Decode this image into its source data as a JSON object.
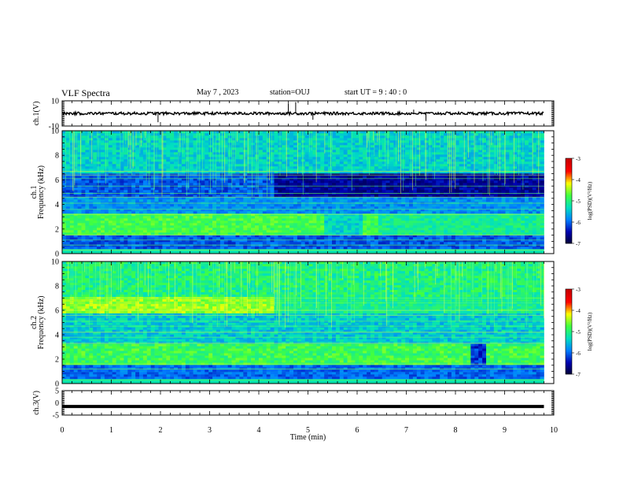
{
  "header": {
    "title": "VLF Spectra",
    "date": "May 7 , 2023",
    "station": "station=OUJ",
    "start": "start UT = 9 : 40 : 0"
  },
  "colors": {
    "background": "#ffffff",
    "axis": "#000000",
    "colormap": [
      "#000030",
      "#0000b0",
      "#0080ff",
      "#00e0c0",
      "#40ff40",
      "#ffff00",
      "#ff0000",
      "#c80000"
    ]
  },
  "chart_data": [
    {
      "type": "line",
      "panel": "ch1-waveform",
      "ylabel": "ch.1(V)",
      "ylim": [
        -10,
        10
      ],
      "yticks": [
        "10",
        "-10"
      ],
      "xlim": [
        0,
        10
      ],
      "baseline": 0,
      "grid": false
    },
    {
      "type": "heatmap",
      "panel": "ch1-spectrogram",
      "ylabel": "ch.1\nFrequency (kHz)",
      "ylabel_lines": [
        "ch.1",
        "Frequency (kHz)"
      ],
      "ylim": [
        0,
        10
      ],
      "yticks": [
        "10",
        "8",
        "6",
        "4",
        "2",
        "0"
      ],
      "xlim": [
        0,
        10
      ],
      "data_end_min": 9.8,
      "colorbar": {
        "label": "log(PSD)(V²/Hz)",
        "range": [
          -7,
          -3
        ],
        "ticks": [
          "-3",
          "-4",
          "-5",
          "-6",
          "-7"
        ]
      }
    },
    {
      "type": "heatmap",
      "panel": "ch2-spectrogram",
      "ylabel": "ch.2\nFrequency (kHz)",
      "ylabel_lines": [
        "ch.2",
        "Frequency (kHz)"
      ],
      "ylim": [
        0,
        10
      ],
      "yticks": [
        "10",
        "8",
        "6",
        "4",
        "2",
        "0"
      ],
      "xlim": [
        0,
        10
      ],
      "data_end_min": 9.8,
      "colorbar": {
        "label": "log(PSD)(V²/Hz)",
        "range": [
          -7,
          -3
        ],
        "ticks": [
          "-3",
          "-4",
          "-5",
          "-6",
          "-7"
        ]
      }
    },
    {
      "type": "line",
      "panel": "ch3-waveform",
      "ylabel": "ch.3(V)",
      "ylim": [
        -5,
        5
      ],
      "yticks": [
        "5",
        "0",
        "-5"
      ],
      "xlim": [
        0,
        10
      ],
      "baseline": -1.5,
      "grid": false,
      "xlabel": "Time (min)",
      "xticks": [
        "0",
        "1",
        "2",
        "3",
        "4",
        "5",
        "6",
        "7",
        "8",
        "9",
        "10"
      ]
    }
  ]
}
